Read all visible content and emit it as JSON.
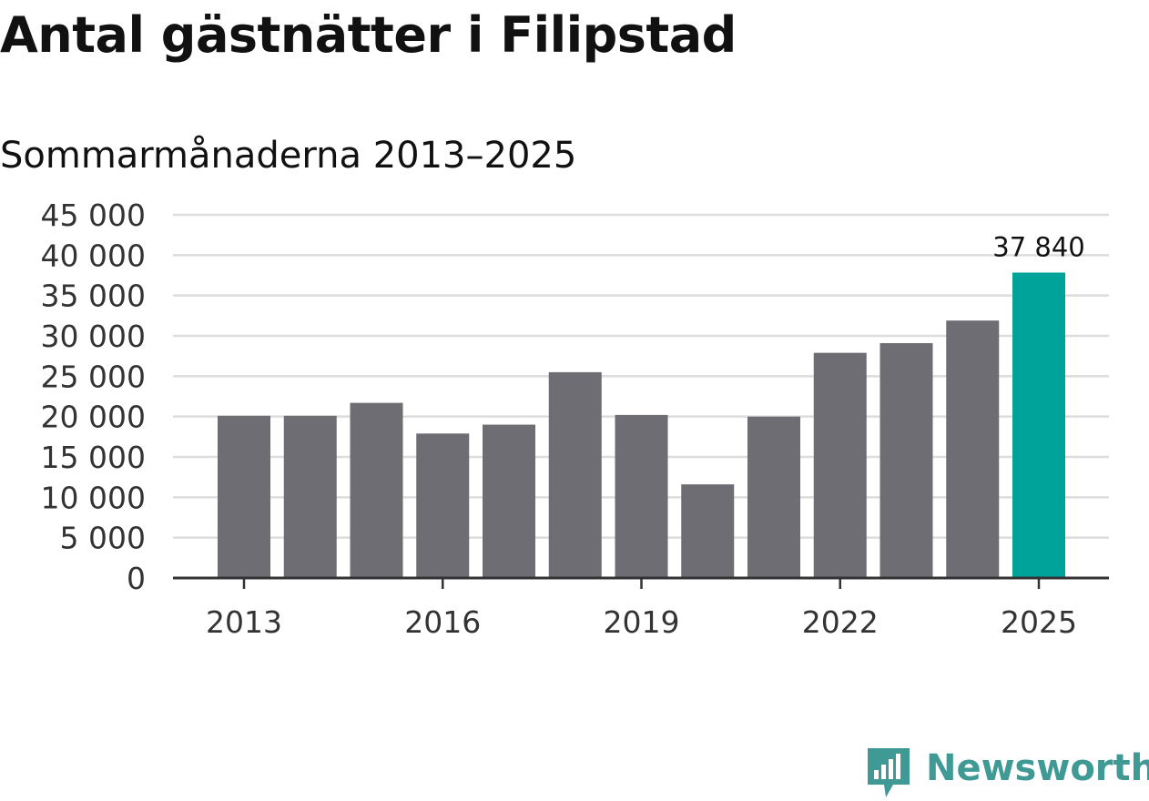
{
  "title": "Antal gästnätter i Filipstad",
  "subtitle": "Sommarmånaderna 2013–2025",
  "brand": {
    "name": "Newsworthy",
    "icon": "newsworthy-logo-icon",
    "color": "#3f9a96"
  },
  "colors": {
    "bar": "#6e6d73",
    "highlight": "#00a39a",
    "grid": "#dddddd",
    "axis": "#333333"
  },
  "chart_data": {
    "type": "bar",
    "categories": [
      "2013",
      "2014",
      "2015",
      "2016",
      "2017",
      "2018",
      "2019",
      "2020",
      "2021",
      "2022",
      "2023",
      "2024",
      "2025"
    ],
    "values": [
      20100,
      20100,
      21700,
      17900,
      19000,
      25500,
      20200,
      11600,
      20000,
      27900,
      29100,
      31900,
      37840
    ],
    "highlight_index": 12,
    "data_labels": [
      {
        "index": 12,
        "text": "37 840"
      }
    ],
    "ylim": [
      0,
      45000
    ],
    "y_ticks": [
      0,
      5000,
      10000,
      15000,
      20000,
      25000,
      30000,
      35000,
      40000,
      45000
    ],
    "y_tick_labels": [
      "0",
      "5 000",
      "10 000",
      "15 000",
      "20 000",
      "25 000",
      "30 000",
      "35 000",
      "40 000",
      "45 000"
    ],
    "x_tick_labels": [
      "2013",
      "2016",
      "2019",
      "2022",
      "2025"
    ],
    "grid": true,
    "legend": "none",
    "xlabel": "",
    "ylabel": ""
  }
}
